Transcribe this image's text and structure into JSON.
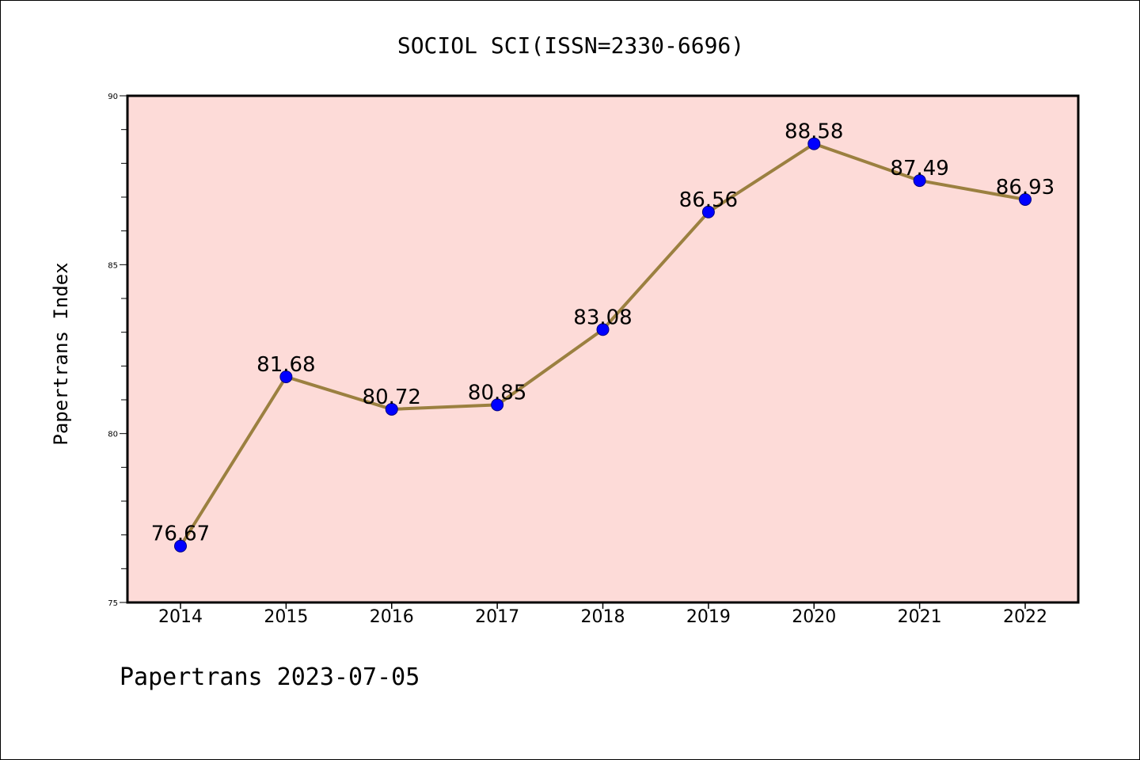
{
  "chart_data": {
    "type": "line",
    "title": "SOCIOL SCI(ISSN=2330-6696)",
    "ylabel": "Papertrans Index",
    "xlabel": "",
    "categories": [
      "2014",
      "2015",
      "2016",
      "2017",
      "2018",
      "2019",
      "2020",
      "2021",
      "2022"
    ],
    "values": [
      76.67,
      81.68,
      80.72,
      80.85,
      83.08,
      86.56,
      88.58,
      87.49,
      86.93
    ],
    "data_labels": [
      "76.67",
      "81.68",
      "80.72",
      "80.85",
      "83.08",
      "86.56",
      "88.58",
      "87.49",
      "86.93"
    ],
    "ylim": [
      75,
      90
    ],
    "y_major_ticks": [
      75,
      80,
      85,
      90
    ],
    "y_minor_step": 1,
    "grid": false,
    "legend": "none",
    "colors": {
      "plot_background": "#fddbd8",
      "line": "#9b8040",
      "marker": "#0000ff",
      "marker_edge": "#000080"
    }
  },
  "footer": "Papertrans 2023-07-05"
}
